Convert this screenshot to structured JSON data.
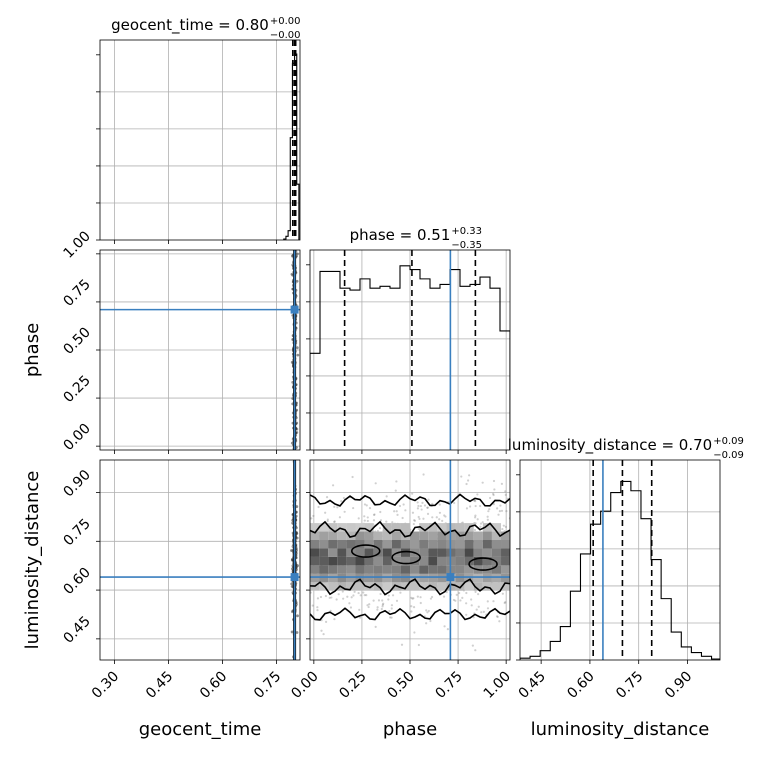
{
  "chart_data": {
    "type": "corner",
    "parameters": [
      "geocent_time",
      "phase",
      "luminosity_distance"
    ],
    "titles": {
      "geocent_time": {
        "name": "geocent_time",
        "value": "0.80",
        "plus": "+0.00",
        "minus": "−0.00"
      },
      "phase": {
        "name": "phase",
        "value": "0.51",
        "plus": "+0.33",
        "minus": "−0.35"
      },
      "luminosity_distance": {
        "name": "luminosity_distance",
        "value": "0.70",
        "plus": "+0.09",
        "minus": "−0.09"
      }
    },
    "ranges": {
      "geocent_time": [
        0.26,
        0.815
      ],
      "phase": [
        -0.02,
        1.02
      ],
      "luminosity_distance": [
        0.385,
        1.0
      ]
    },
    "ticks": {
      "geocent_time": [
        0.3,
        0.45,
        0.6,
        0.75
      ],
      "phase": [
        0.0,
        0.25,
        0.5,
        0.75,
        1.0
      ],
      "luminosity_distance": [
        0.45,
        0.6,
        0.75,
        0.9
      ]
    },
    "tick_labels": {
      "geocent_time": [
        "0.30",
        "0.45",
        "0.60",
        "0.75"
      ],
      "phase": [
        "0.00",
        "0.25",
        "0.50",
        "0.75",
        "1.00"
      ],
      "luminosity_distance": [
        "0.45",
        "0.60",
        "0.75",
        "0.90"
      ]
    },
    "truths": {
      "geocent_time": 0.8,
      "phase": 0.71,
      "luminosity_distance": 0.64
    },
    "quantiles": {
      "geocent_time": [
        0.795,
        0.8,
        0.803
      ],
      "phase": [
        0.16,
        0.51,
        0.84
      ],
      "luminosity_distance": [
        0.61,
        0.7,
        0.79
      ]
    },
    "histograms": {
      "geocent_time": {
        "edges": [
          0.77,
          0.776,
          0.782,
          0.788,
          0.794,
          0.8,
          0.806,
          0.812
        ],
        "counts": [
          0.005,
          0.02,
          0.05,
          0.55,
          0.95,
          1.0,
          0.3
        ]
      },
      "phase": {
        "edges": [
          -0.02,
          0.032,
          0.084,
          0.136,
          0.188,
          0.24,
          0.292,
          0.344,
          0.396,
          0.448,
          0.5,
          0.552,
          0.604,
          0.656,
          0.708,
          0.76,
          0.812,
          0.864,
          0.916,
          0.968,
          1.02
        ],
        "counts": [
          0.52,
          0.96,
          0.96,
          0.87,
          0.86,
          0.92,
          0.87,
          0.88,
          0.87,
          0.99,
          0.97,
          0.92,
          0.87,
          0.89,
          0.97,
          0.88,
          0.89,
          0.93,
          0.87,
          0.64
        ]
      },
      "luminosity_distance": {
        "edges": [
          0.385,
          0.416,
          0.447,
          0.478,
          0.509,
          0.54,
          0.571,
          0.602,
          0.633,
          0.664,
          0.695,
          0.726,
          0.757,
          0.788,
          0.819,
          0.85,
          0.881,
          0.912,
          0.943,
          0.974,
          1.0
        ],
        "counts": [
          0.01,
          0.02,
          0.05,
          0.1,
          0.18,
          0.37,
          0.57,
          0.73,
          0.8,
          0.9,
          0.96,
          0.91,
          0.76,
          0.54,
          0.33,
          0.15,
          0.07,
          0.04,
          0.02,
          0.005
        ]
      }
    },
    "contour_levels": [
      "39%",
      "86%"
    ],
    "grid": true
  }
}
